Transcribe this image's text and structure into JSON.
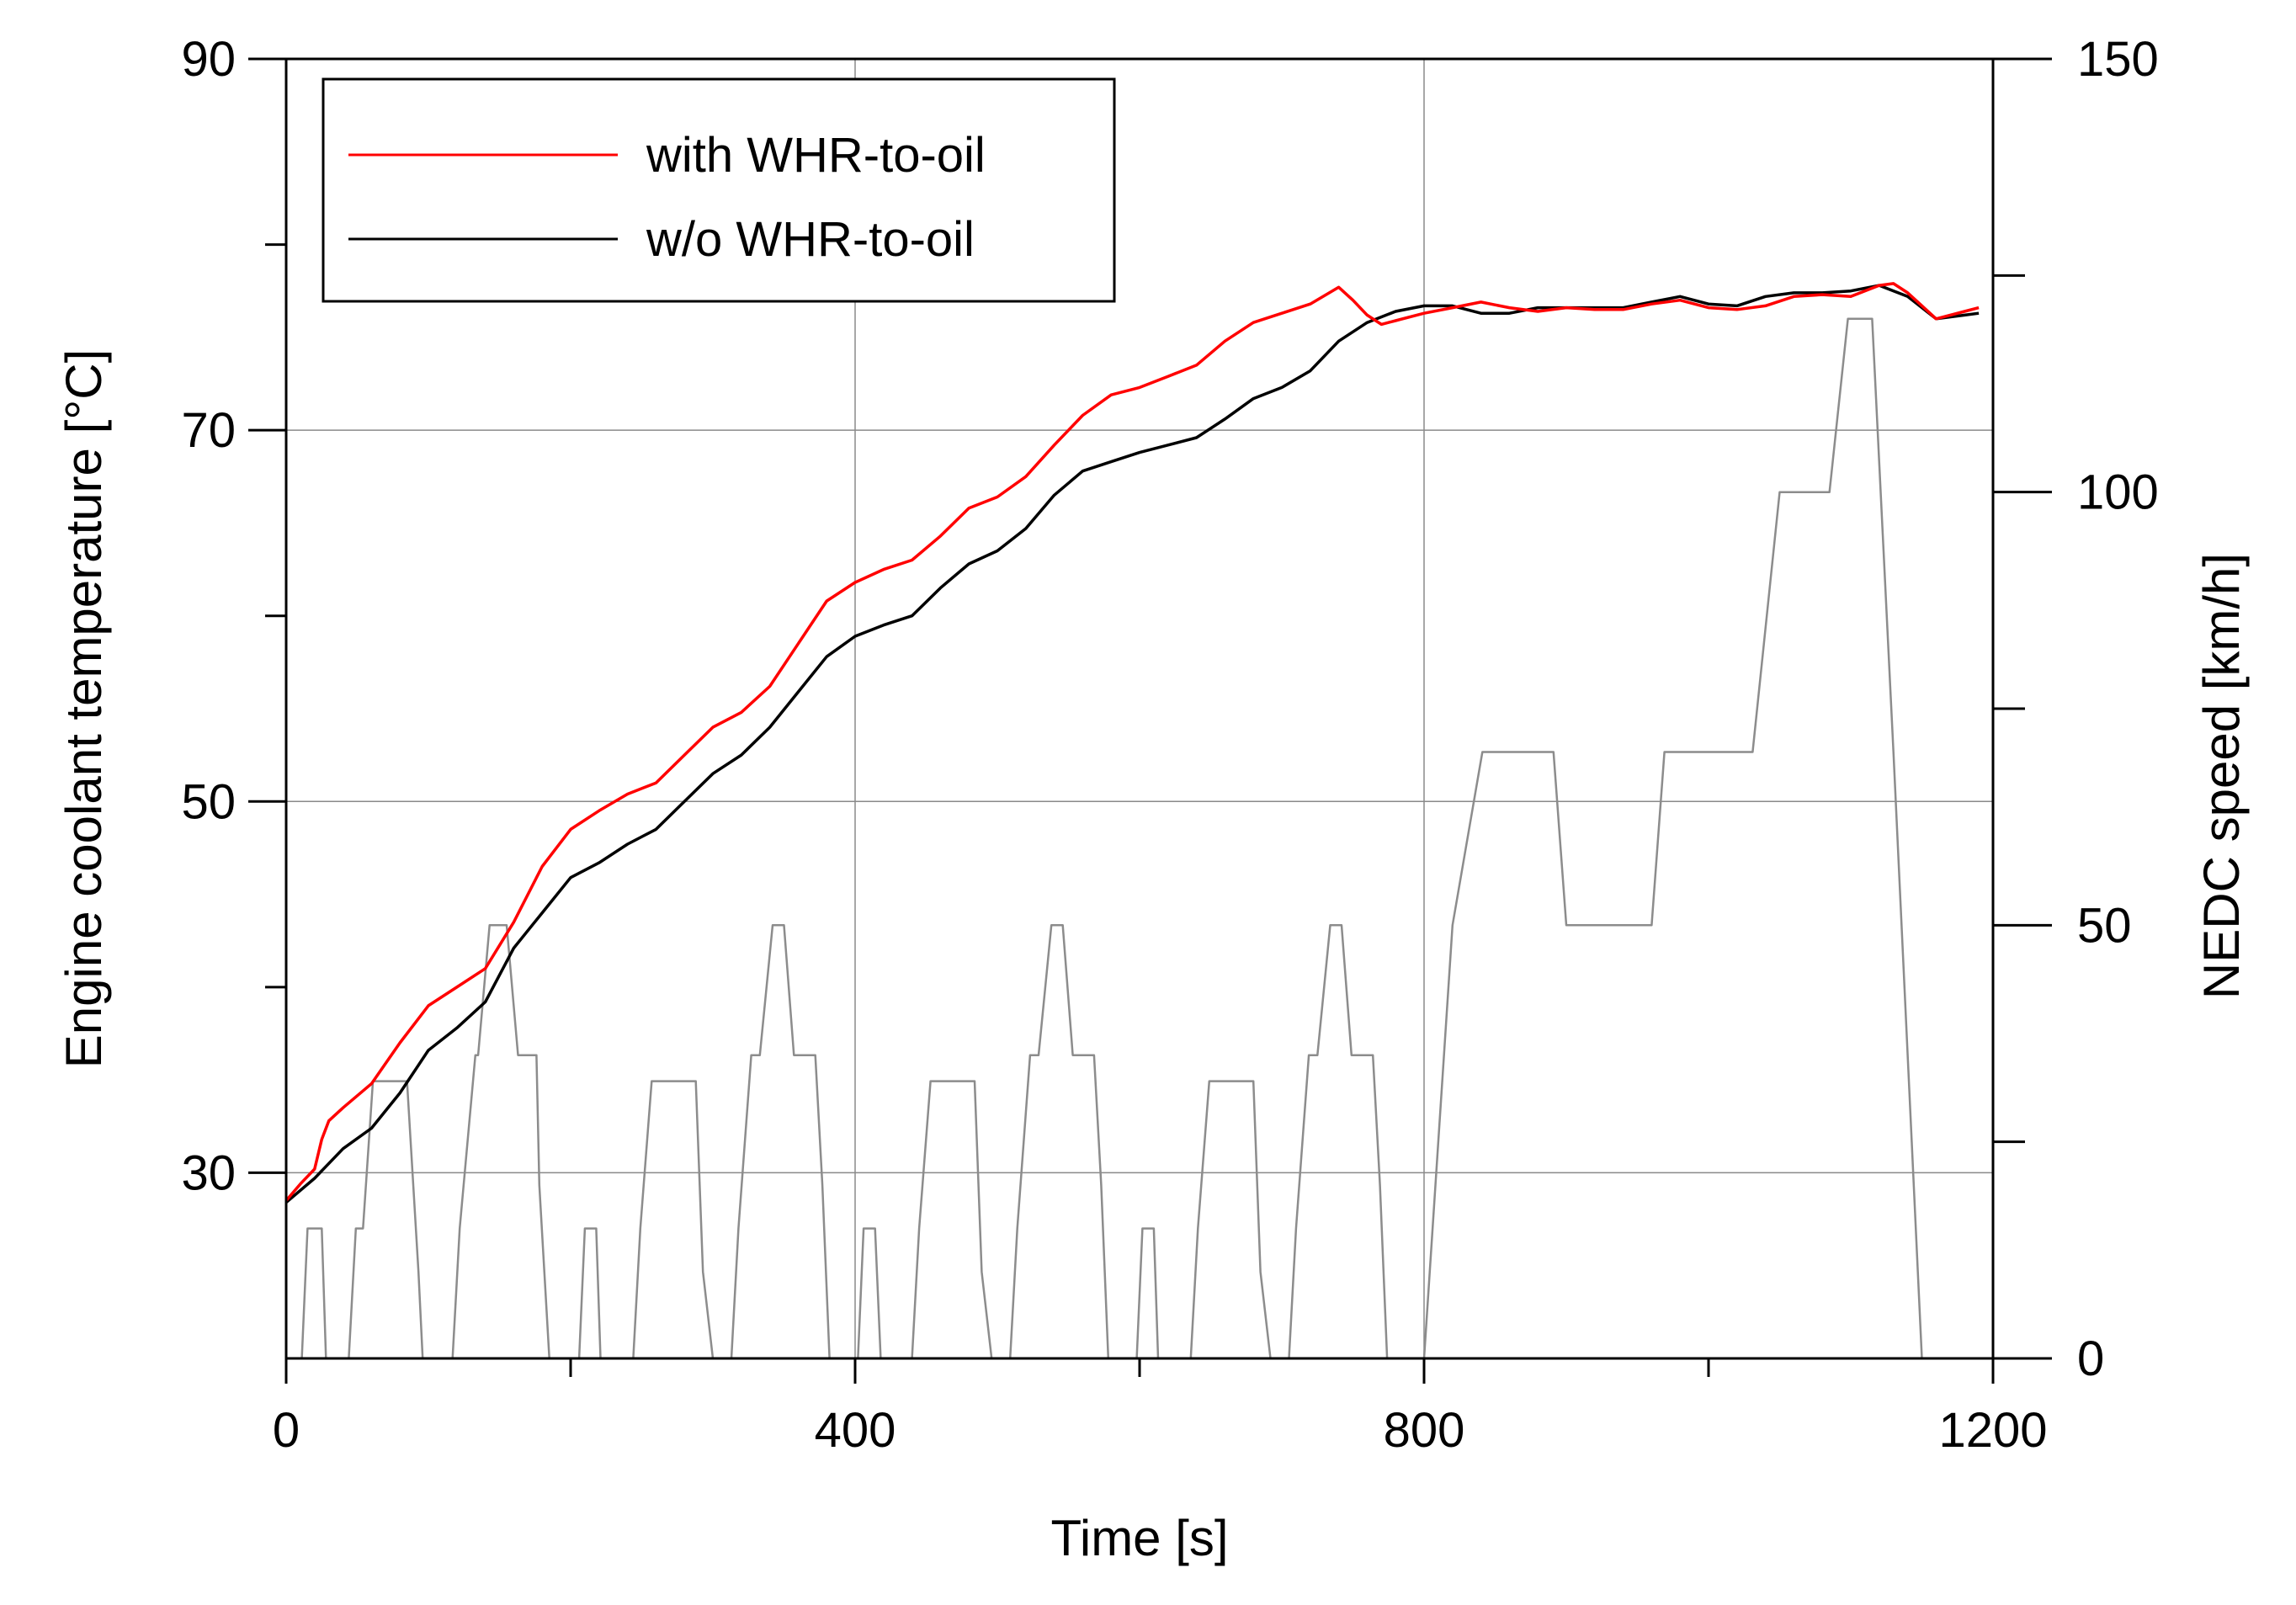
{
  "chart_data": {
    "type": "line",
    "xlabel": "Time [s]",
    "ylabel": "Engine coolant temperature [°C]",
    "y2label": "NEDC speed [km/h]",
    "xlim": [
      0,
      1200
    ],
    "ylim": [
      20,
      90
    ],
    "y2lim": [
      0,
      150
    ],
    "x_ticks": [
      0,
      400,
      800,
      1200
    ],
    "x_minor_ticks": [
      200,
      600,
      1000
    ],
    "y_ticks": [
      30,
      50,
      70,
      90
    ],
    "y_minor_ticks": [
      40,
      60,
      80
    ],
    "y2_ticks": [
      0,
      50,
      100,
      150
    ],
    "y2_minor_ticks": [
      25,
      75,
      125
    ],
    "grid": true,
    "legend_position": "top-left",
    "colors": {
      "with": "#ff0000",
      "without": "#000000",
      "speed": "#8c8c8c"
    },
    "series": [
      {
        "name": "with WHR-to-oil",
        "axis": "left",
        "color": "#ff0000",
        "x": [
          0,
          10,
          20,
          25,
          30,
          40,
          60,
          80,
          100,
          120,
          140,
          160,
          180,
          200,
          220,
          240,
          260,
          280,
          300,
          320,
          340,
          360,
          380,
          400,
          420,
          440,
          460,
          480,
          500,
          520,
          540,
          560,
          580,
          600,
          620,
          640,
          660,
          680,
          700,
          720,
          740,
          750,
          760,
          770,
          780,
          800,
          820,
          840,
          860,
          880,
          900,
          920,
          940,
          960,
          980,
          1000,
          1020,
          1040,
          1060,
          1080,
          1100,
          1120,
          1130,
          1140,
          1160,
          1180,
          1190
        ],
        "y": [
          28.5,
          29.4,
          30.2,
          31.8,
          32.8,
          33.5,
          34.8,
          37.0,
          39.0,
          40.0,
          41.0,
          43.5,
          46.5,
          48.5,
          49.5,
          50.4,
          51.0,
          52.5,
          54.0,
          54.8,
          56.2,
          58.5,
          60.8,
          61.8,
          62.5,
          63.0,
          64.3,
          65.8,
          66.4,
          67.5,
          69.2,
          70.8,
          71.9,
          72.3,
          72.9,
          73.5,
          74.8,
          75.8,
          76.3,
          76.8,
          77.7,
          77.0,
          76.2,
          75.7,
          75.9,
          76.3,
          76.6,
          76.9,
          76.6,
          76.4,
          76.6,
          76.5,
          76.5,
          76.8,
          77.0,
          76.6,
          76.5,
          76.7,
          77.2,
          77.3,
          77.2,
          77.8,
          77.9,
          77.4,
          76.0,
          76.4,
          76.6
        ]
      },
      {
        "name": "w/o WHR-to-oil",
        "axis": "left",
        "color": "#000000",
        "x": [
          0,
          20,
          40,
          60,
          80,
          100,
          120,
          140,
          160,
          180,
          200,
          220,
          240,
          260,
          280,
          300,
          320,
          340,
          360,
          380,
          400,
          420,
          440,
          460,
          480,
          500,
          520,
          540,
          560,
          580,
          600,
          620,
          640,
          660,
          680,
          700,
          720,
          740,
          760,
          780,
          800,
          820,
          840,
          860,
          880,
          900,
          920,
          940,
          960,
          980,
          1000,
          1020,
          1040,
          1060,
          1080,
          1100,
          1120,
          1140,
          1160,
          1180,
          1190
        ],
        "y": [
          28.4,
          29.7,
          31.3,
          32.4,
          34.3,
          36.6,
          37.8,
          39.2,
          42.1,
          44.0,
          45.9,
          46.7,
          47.7,
          48.5,
          50.0,
          51.5,
          52.5,
          54.0,
          55.9,
          57.8,
          58.9,
          59.5,
          60.0,
          61.5,
          62.8,
          63.5,
          64.7,
          66.5,
          67.8,
          68.3,
          68.8,
          69.2,
          69.6,
          70.6,
          71.7,
          72.3,
          73.2,
          74.8,
          75.8,
          76.4,
          76.7,
          76.7,
          76.3,
          76.3,
          76.6,
          76.6,
          76.6,
          76.6,
          76.9,
          77.2,
          76.8,
          76.7,
          77.2,
          77.4,
          77.4,
          77.5,
          77.8,
          77.2,
          76.0,
          76.2,
          76.3
        ]
      },
      {
        "name": "",
        "axis": "right",
        "color": "#8c8c8c",
        "x": [
          0,
          11,
          15,
          23,
          25,
          28,
          44,
          49,
          54,
          61,
          85,
          93,
          96,
          117,
          122,
          133,
          135,
          143,
          155,
          163,
          176,
          178,
          185,
          195,
          206,
          210,
          218,
          221,
          229,
          244,
          249,
          257,
          264,
          288,
          293,
          300,
          313,
          318,
          327,
          333,
          342,
          350,
          357,
          372,
          377,
          382,
          391,
          402,
          406,
          414,
          418,
          425,
          440,
          445,
          453,
          460,
          484,
          489,
          496,
          509,
          514,
          523,
          529,
          538,
          546,
          553,
          568,
          573,
          578,
          587,
          598,
          602,
          610,
          613,
          621,
          636,
          641,
          649,
          656,
          680,
          685,
          692,
          705,
          710,
          719,
          725,
          734,
          742,
          749,
          764,
          769,
          774,
          783,
          800,
          820,
          841,
          891,
          900,
          960,
          969,
          981,
          1031,
          1050,
          1085,
          1098,
          1115,
          1130,
          1150,
          1175,
          1180,
          1200
        ],
        "y": [
          0,
          0,
          15,
          15,
          15,
          0,
          0,
          15,
          15,
          32,
          32,
          10,
          0,
          0,
          15,
          35,
          35,
          50,
          50,
          35,
          35,
          20,
          0,
          0,
          0,
          15,
          15,
          0,
          0,
          0,
          15,
          32,
          32,
          32,
          10,
          0,
          0,
          15,
          35,
          35,
          50,
          50,
          35,
          35,
          20,
          0,
          0,
          0,
          15,
          15,
          0,
          0,
          0,
          15,
          32,
          32,
          32,
          10,
          0,
          0,
          15,
          35,
          35,
          50,
          50,
          35,
          35,
          20,
          0,
          0,
          0,
          15,
          15,
          0,
          0,
          0,
          15,
          32,
          32,
          32,
          10,
          0,
          0,
          15,
          35,
          35,
          50,
          50,
          35,
          35,
          20,
          0,
          0,
          0,
          50,
          70,
          70,
          50,
          50,
          70,
          70,
          70,
          100,
          100,
          120,
          120,
          70,
          0,
          0,
          0,
          0
        ]
      }
    ]
  }
}
